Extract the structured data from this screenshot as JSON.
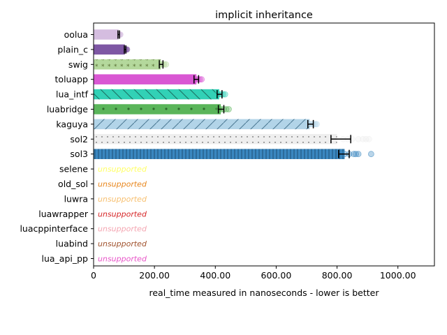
{
  "chart_data": {
    "type": "bar",
    "orientation": "horizontal",
    "title": "implicit inheritance",
    "xlabel": "real_time measured in nanoseconds - lower is better",
    "xlim": [
      0,
      1120
    ],
    "xticks": [
      0,
      200,
      400,
      600,
      800,
      1000
    ],
    "xtick_labels": [
      "0",
      "200.00",
      "400.00",
      "600.00",
      "800.00",
      "1000.00"
    ],
    "grid": false,
    "unsupported_label": "unsupported",
    "categories": [
      "oolua",
      "plain_c",
      "swig",
      "toluapp",
      "lua_intf",
      "luabridge",
      "kaguya",
      "sol2",
      "sol3",
      "selene",
      "old_sol",
      "luwra",
      "luawrapper",
      "luacppinterface",
      "luabind",
      "lua_api_pp"
    ],
    "bars": [
      {
        "name": "oolua",
        "value": 82,
        "err_low": 80,
        "err_high": 85,
        "color": "#d5bde0",
        "hatch": "none",
        "samples": [
          80,
          82,
          84,
          86,
          88
        ]
      },
      {
        "name": "plain_c",
        "value": 103,
        "err_low": 101,
        "err_high": 106,
        "color": "#7e57a4",
        "hatch": "none",
        "samples": [
          100,
          103,
          105,
          108,
          110
        ]
      },
      {
        "name": "swig",
        "value": 221,
        "err_low": 216,
        "err_high": 228,
        "color": "#b4d89c",
        "hatch": "stars",
        "samples": [
          212,
          218,
          222,
          226,
          232,
          238
        ]
      },
      {
        "name": "toluapp",
        "value": 338,
        "err_low": 330,
        "err_high": 345,
        "color": "#d957d3",
        "hatch": "none",
        "samples": [
          330,
          336,
          340,
          345,
          350,
          355
        ]
      },
      {
        "name": "lua_intf",
        "value": 413,
        "err_low": 406,
        "err_high": 422,
        "color": "#32d1b6",
        "hatch": "backslash",
        "samples": [
          408,
          414,
          420,
          426,
          432
        ]
      },
      {
        "name": "luabridge",
        "value": 418,
        "err_low": 410,
        "err_high": 428,
        "color": "#5ab55a",
        "hatch": "dots-large",
        "samples": [
          412,
          420,
          428,
          436,
          444
        ]
      },
      {
        "name": "kaguya",
        "value": 710,
        "err_low": 704,
        "err_high": 722,
        "color": "#b2d4e8",
        "hatch": "slash",
        "samples": [
          708,
          715,
          722,
          728,
          733
        ]
      },
      {
        "name": "sol2",
        "value": 800,
        "err_low": 780,
        "err_high": 845,
        "color": "#eeeeee",
        "hatch": "dots-small",
        "samples": [
          820,
          835,
          850,
          870,
          885,
          895,
          905
        ]
      },
      {
        "name": "sol3",
        "value": 825,
        "err_low": 805,
        "err_high": 840,
        "color": "#3a87c0",
        "hatch": "vertical",
        "samples": [
          825,
          840,
          855,
          862,
          870,
          912
        ]
      },
      {
        "name": "selene",
        "value": null,
        "color": "#ffff66",
        "samples": []
      },
      {
        "name": "old_sol",
        "value": null,
        "color": "#e8871e",
        "samples": []
      },
      {
        "name": "luwra",
        "value": null,
        "color": "#f7c071",
        "samples": []
      },
      {
        "name": "luawrapper",
        "value": null,
        "color": "#d62728",
        "samples": []
      },
      {
        "name": "luacppinterface",
        "value": null,
        "color": "#f4a6b2",
        "samples": []
      },
      {
        "name": "luabind",
        "value": null,
        "color": "#a0522d",
        "samples": []
      },
      {
        "name": "lua_api_pp",
        "value": null,
        "color": "#e855c8",
        "samples": []
      }
    ]
  }
}
